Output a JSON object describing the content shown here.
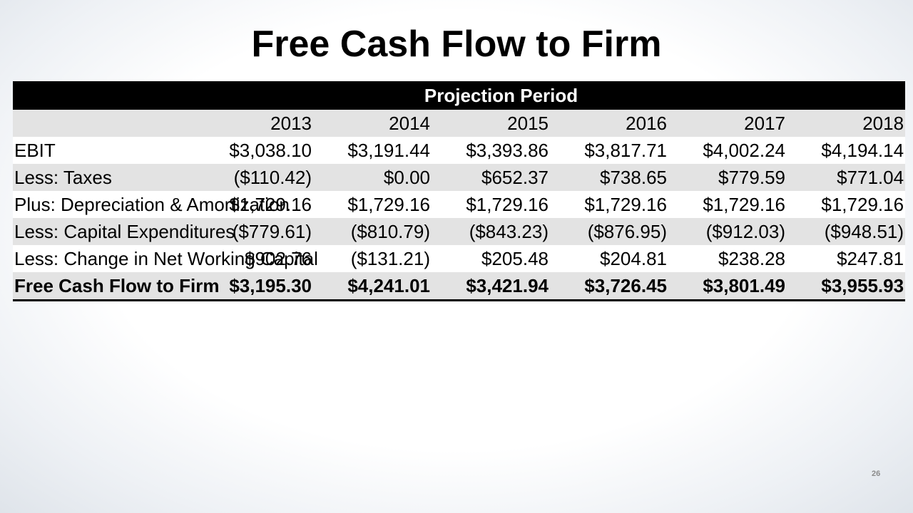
{
  "title": "Free Cash Flow to Firm",
  "table": {
    "banner": "Projection Period",
    "year_header_label": "",
    "years": [
      "2013",
      "2014",
      "2015",
      "2016",
      "2017",
      "2018"
    ],
    "rows": [
      {
        "label": "EBIT",
        "values": [
          "$3,038.10",
          "$3,191.44",
          "$3,393.86",
          "$3,817.71",
          "$4,002.24",
          "$4,194.14"
        ]
      },
      {
        "label": "Less: Taxes",
        "values": [
          "($110.42)",
          "$0.00",
          "$652.37",
          "$738.65",
          "$779.59",
          "$771.04"
        ]
      },
      {
        "label": "Plus: Depreciation & Amortization",
        "values": [
          "$1,729.16",
          "$1,729.16",
          "$1,729.16",
          "$1,729.16",
          "$1,729.16",
          "$1,729.16"
        ]
      },
      {
        "label": "Less: Capital Expenditures",
        "values": [
          "($779.61)",
          "($810.79)",
          "($843.23)",
          "($876.95)",
          "($912.03)",
          "($948.51)"
        ]
      },
      {
        "label": "Less: Change in Net Working Capital",
        "values": [
          "$902.76",
          "($131.21)",
          "$205.48",
          "$204.81",
          "$238.28",
          "$247.81"
        ]
      },
      {
        "label": "Free Cash Flow to Firm",
        "values": [
          "$3,195.30",
          "$4,241.01",
          "$3,421.94",
          "$3,726.45",
          "$3,801.49",
          "$3,955.93"
        ]
      }
    ]
  },
  "page_number": "26"
}
